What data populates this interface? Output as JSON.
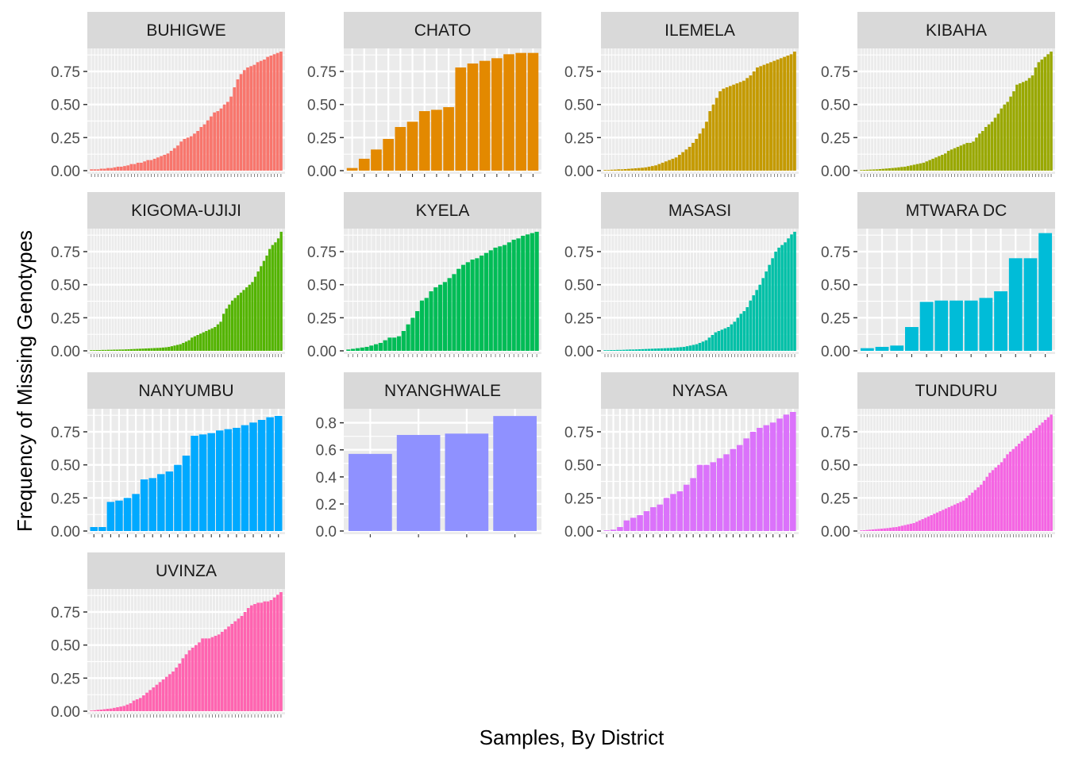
{
  "chart_data": {
    "type": "bar",
    "xlabel": "Samples, By District",
    "ylabel": "Frequency of Missing Genotypes",
    "colors": {
      "panel_background": "#ebebeb",
      "grid": "#ffffff",
      "strip_background": "#d9d9d9"
    },
    "panels": [
      {
        "district": "BUHIGWE",
        "color": "#F8766D",
        "ylim": [
          0,
          0.9
        ],
        "ticks": [
          "0.00",
          "0.25",
          "0.50",
          "0.75"
        ],
        "tick_values": [
          0,
          0.25,
          0.5,
          0.75
        ],
        "values": [
          0.01,
          0.01,
          0.01,
          0.015,
          0.015,
          0.02,
          0.02,
          0.025,
          0.03,
          0.03,
          0.035,
          0.04,
          0.05,
          0.05,
          0.06,
          0.06,
          0.07,
          0.08,
          0.08,
          0.09,
          0.1,
          0.11,
          0.12,
          0.13,
          0.15,
          0.17,
          0.19,
          0.22,
          0.24,
          0.25,
          0.26,
          0.28,
          0.3,
          0.33,
          0.35,
          0.38,
          0.41,
          0.44,
          0.45,
          0.47,
          0.5,
          0.52,
          0.56,
          0.63,
          0.69,
          0.73,
          0.76,
          0.78,
          0.79,
          0.8,
          0.82,
          0.83,
          0.84,
          0.86,
          0.87,
          0.88,
          0.89,
          0.9
        ]
      },
      {
        "district": "CHATO",
        "color": "#E38900",
        "ylim": [
          0,
          0.9
        ],
        "ticks": [
          "0.00",
          "0.25",
          "0.50",
          "0.75"
        ],
        "tick_values": [
          0,
          0.25,
          0.5,
          0.75
        ],
        "values": [
          0.02,
          0.09,
          0.16,
          0.24,
          0.33,
          0.37,
          0.45,
          0.46,
          0.48,
          0.78,
          0.81,
          0.83,
          0.85,
          0.88,
          0.89,
          0.89
        ]
      },
      {
        "district": "ILEMELA",
        "color": "#C49A00",
        "ylim": [
          0,
          0.9
        ],
        "ticks": [
          "0.00",
          "0.25",
          "0.50",
          "0.75"
        ],
        "tick_values": [
          0,
          0.25,
          0.5,
          0.75
        ],
        "values": [
          0.005,
          0.005,
          0.007,
          0.008,
          0.01,
          0.01,
          0.012,
          0.014,
          0.016,
          0.018,
          0.02,
          0.022,
          0.025,
          0.03,
          0.035,
          0.04,
          0.05,
          0.06,
          0.07,
          0.08,
          0.09,
          0.1,
          0.12,
          0.14,
          0.16,
          0.18,
          0.21,
          0.24,
          0.28,
          0.32,
          0.37,
          0.45,
          0.5,
          0.55,
          0.6,
          0.62,
          0.63,
          0.64,
          0.65,
          0.66,
          0.67,
          0.68,
          0.7,
          0.72,
          0.75,
          0.78,
          0.79,
          0.8,
          0.81,
          0.82,
          0.83,
          0.84,
          0.85,
          0.86,
          0.87,
          0.88,
          0.9
        ]
      },
      {
        "district": "KIBAHA",
        "color": "#99A800",
        "ylim": [
          0,
          0.9
        ],
        "ticks": [
          "0.00",
          "0.25",
          "0.50",
          "0.75"
        ],
        "tick_values": [
          0,
          0.25,
          0.5,
          0.75
        ],
        "values": [
          0.005,
          0.006,
          0.007,
          0.008,
          0.009,
          0.01,
          0.012,
          0.014,
          0.016,
          0.018,
          0.02,
          0.022,
          0.025,
          0.028,
          0.03,
          0.035,
          0.04,
          0.045,
          0.05,
          0.055,
          0.06,
          0.07,
          0.08,
          0.09,
          0.1,
          0.11,
          0.12,
          0.13,
          0.15,
          0.16,
          0.17,
          0.18,
          0.19,
          0.2,
          0.21,
          0.21,
          0.22,
          0.25,
          0.28,
          0.3,
          0.33,
          0.35,
          0.37,
          0.4,
          0.43,
          0.47,
          0.5,
          0.52,
          0.56,
          0.6,
          0.65,
          0.66,
          0.67,
          0.68,
          0.7,
          0.72,
          0.78,
          0.82,
          0.84,
          0.86,
          0.88,
          0.9
        ]
      },
      {
        "district": "KIGOMA-UJIJI",
        "color": "#53B400",
        "ylim": [
          0,
          0.9
        ],
        "ticks": [
          "0.00",
          "0.25",
          "0.50",
          "0.75"
        ],
        "tick_values": [
          0,
          0.25,
          0.5,
          0.75
        ],
        "values": [
          0.005,
          0.005,
          0.006,
          0.006,
          0.007,
          0.007,
          0.008,
          0.008,
          0.009,
          0.009,
          0.01,
          0.01,
          0.011,
          0.012,
          0.013,
          0.014,
          0.015,
          0.016,
          0.017,
          0.018,
          0.019,
          0.02,
          0.021,
          0.022,
          0.023,
          0.025,
          0.027,
          0.03,
          0.035,
          0.04,
          0.045,
          0.05,
          0.06,
          0.07,
          0.08,
          0.1,
          0.11,
          0.12,
          0.13,
          0.14,
          0.15,
          0.16,
          0.17,
          0.18,
          0.2,
          0.22,
          0.28,
          0.32,
          0.35,
          0.38,
          0.4,
          0.42,
          0.44,
          0.46,
          0.48,
          0.5,
          0.52,
          0.56,
          0.6,
          0.64,
          0.68,
          0.72,
          0.77,
          0.8,
          0.82,
          0.85,
          0.9
        ]
      },
      {
        "district": "KYELA",
        "color": "#00BC56",
        "ylim": [
          0,
          0.9
        ],
        "ticks": [
          "0.00",
          "0.25",
          "0.50",
          "0.75"
        ],
        "tick_values": [
          0,
          0.25,
          0.5,
          0.75
        ],
        "values": [
          0.01,
          0.015,
          0.02,
          0.025,
          0.03,
          0.04,
          0.05,
          0.06,
          0.08,
          0.1,
          0.1,
          0.11,
          0.15,
          0.2,
          0.25,
          0.3,
          0.38,
          0.4,
          0.45,
          0.48,
          0.5,
          0.52,
          0.55,
          0.58,
          0.62,
          0.65,
          0.67,
          0.69,
          0.7,
          0.72,
          0.74,
          0.76,
          0.78,
          0.79,
          0.8,
          0.82,
          0.84,
          0.85,
          0.87,
          0.88,
          0.89,
          0.9
        ]
      },
      {
        "district": "MASASI",
        "color": "#00C0A7",
        "ylim": [
          0,
          0.9
        ],
        "ticks": [
          "0.00",
          "0.25",
          "0.50",
          "0.75"
        ],
        "tick_values": [
          0,
          0.25,
          0.5,
          0.75
        ],
        "values": [
          0.005,
          0.005,
          0.006,
          0.006,
          0.007,
          0.007,
          0.008,
          0.009,
          0.01,
          0.01,
          0.011,
          0.012,
          0.013,
          0.014,
          0.015,
          0.016,
          0.017,
          0.018,
          0.019,
          0.02,
          0.021,
          0.022,
          0.024,
          0.026,
          0.028,
          0.03,
          0.035,
          0.04,
          0.045,
          0.05,
          0.06,
          0.07,
          0.08,
          0.1,
          0.12,
          0.14,
          0.15,
          0.16,
          0.17,
          0.18,
          0.2,
          0.22,
          0.25,
          0.28,
          0.3,
          0.33,
          0.38,
          0.42,
          0.46,
          0.5,
          0.55,
          0.6,
          0.65,
          0.7,
          0.75,
          0.78,
          0.8,
          0.82,
          0.85,
          0.88,
          0.9
        ]
      },
      {
        "district": "MTWARA DC",
        "color": "#00BCD8",
        "ylim": [
          0,
          0.9
        ],
        "ticks": [
          "0.00",
          "0.25",
          "0.50",
          "0.75"
        ],
        "tick_values": [
          0,
          0.25,
          0.5,
          0.75
        ],
        "values": [
          0.02,
          0.03,
          0.04,
          0.18,
          0.37,
          0.38,
          0.38,
          0.38,
          0.4,
          0.45,
          0.7,
          0.7,
          0.89
        ]
      },
      {
        "district": "NANYUMBU",
        "color": "#00A9FF",
        "ylim": [
          0,
          0.9
        ],
        "ticks": [
          "0.00",
          "0.25",
          "0.50",
          "0.75"
        ],
        "tick_values": [
          0,
          0.25,
          0.5,
          0.75
        ],
        "values": [
          0.03,
          0.03,
          0.22,
          0.23,
          0.25,
          0.28,
          0.39,
          0.4,
          0.43,
          0.45,
          0.5,
          0.57,
          0.72,
          0.73,
          0.74,
          0.76,
          0.77,
          0.78,
          0.8,
          0.82,
          0.84,
          0.86,
          0.87
        ]
      },
      {
        "district": "NYANGHWALE",
        "color": "#8F91FF",
        "ylim": [
          0,
          0.88
        ],
        "ticks": [
          "0.0",
          "0.2",
          "0.4",
          "0.6",
          "0.8"
        ],
        "tick_values": [
          0,
          0.2,
          0.4,
          0.6,
          0.8
        ],
        "values": [
          0.57,
          0.71,
          0.72,
          0.85
        ]
      },
      {
        "district": "NYASA",
        "color": "#DB72FB",
        "ylim": [
          0,
          0.9
        ],
        "ticks": [
          "0.00",
          "0.25",
          "0.50",
          "0.75"
        ],
        "tick_values": [
          0,
          0.25,
          0.5,
          0.75
        ],
        "values": [
          0.005,
          0.01,
          0.03,
          0.08,
          0.1,
          0.12,
          0.15,
          0.18,
          0.2,
          0.25,
          0.28,
          0.3,
          0.35,
          0.4,
          0.5,
          0.5,
          0.52,
          0.55,
          0.58,
          0.62,
          0.65,
          0.7,
          0.75,
          0.78,
          0.8,
          0.82,
          0.85,
          0.88,
          0.9
        ]
      },
      {
        "district": "TUNDURU",
        "color": "#F564E3",
        "ylim": [
          0,
          0.9
        ],
        "ticks": [
          "0.00",
          "0.25",
          "0.50",
          "0.75"
        ],
        "tick_values": [
          0,
          0.25,
          0.5,
          0.75
        ],
        "values": [
          0.005,
          0.006,
          0.008,
          0.01,
          0.012,
          0.014,
          0.016,
          0.018,
          0.02,
          0.022,
          0.025,
          0.028,
          0.03,
          0.035,
          0.04,
          0.045,
          0.05,
          0.055,
          0.06,
          0.07,
          0.08,
          0.09,
          0.1,
          0.11,
          0.12,
          0.13,
          0.14,
          0.15,
          0.16,
          0.17,
          0.18,
          0.19,
          0.2,
          0.21,
          0.22,
          0.23,
          0.25,
          0.27,
          0.29,
          0.31,
          0.33,
          0.35,
          0.38,
          0.41,
          0.44,
          0.46,
          0.48,
          0.5,
          0.52,
          0.55,
          0.58,
          0.6,
          0.62,
          0.64,
          0.66,
          0.68,
          0.7,
          0.72,
          0.74,
          0.76,
          0.78,
          0.8,
          0.82,
          0.84,
          0.86,
          0.88
        ]
      },
      {
        "district": "UVINZA",
        "color": "#FF64B0",
        "ylim": [
          0,
          0.9
        ],
        "ticks": [
          "0.00",
          "0.25",
          "0.50",
          "0.75"
        ],
        "tick_values": [
          0,
          0.25,
          0.5,
          0.75
        ],
        "values": [
          0.005,
          0.007,
          0.01,
          0.012,
          0.015,
          0.018,
          0.02,
          0.025,
          0.03,
          0.035,
          0.04,
          0.05,
          0.06,
          0.08,
          0.09,
          0.1,
          0.12,
          0.14,
          0.16,
          0.18,
          0.2,
          0.22,
          0.24,
          0.26,
          0.28,
          0.3,
          0.33,
          0.36,
          0.4,
          0.43,
          0.46,
          0.48,
          0.5,
          0.52,
          0.55,
          0.55,
          0.55,
          0.56,
          0.57,
          0.58,
          0.6,
          0.62,
          0.64,
          0.66,
          0.68,
          0.7,
          0.72,
          0.75,
          0.78,
          0.8,
          0.81,
          0.82,
          0.82,
          0.83,
          0.83,
          0.84,
          0.86,
          0.88,
          0.9
        ]
      }
    ]
  }
}
